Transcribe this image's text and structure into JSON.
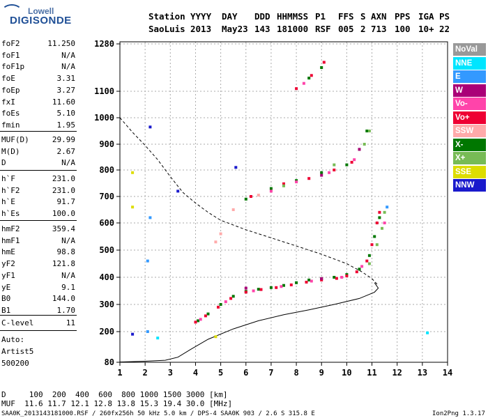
{
  "logo": {
    "brand_top": "Lowell",
    "brand_main": "DIGISONDE"
  },
  "header": {
    "row1": [
      "Station",
      "YYYY",
      "DAY",
      "DDD",
      "HHMMSS",
      "P1",
      "FFS",
      "S",
      "AXN",
      "PPS",
      "IGA",
      "PS"
    ],
    "row2": [
      "SaoLuis",
      "2013",
      "May23",
      "143",
      "181000",
      "RSF",
      "005",
      "2",
      "713",
      "100",
      "10+",
      "22"
    ]
  },
  "params_group1": [
    {
      "name": "foF2",
      "value": "11.250"
    },
    {
      "name": "foF1",
      "value": "N/A"
    },
    {
      "name": "foF1p",
      "value": "N/A"
    },
    {
      "name": "foE",
      "value": "3.31"
    },
    {
      "name": "foEp",
      "value": "3.27"
    },
    {
      "name": "fxI",
      "value": "11.60"
    },
    {
      "name": "foEs",
      "value": "5.10"
    },
    {
      "name": "fmin",
      "value": "1.95"
    }
  ],
  "params_group2": [
    {
      "name": "MUF(D)",
      "value": "29.99"
    },
    {
      "name": "M(D)",
      "value": "2.67"
    },
    {
      "name": "D",
      "value": "N/A"
    }
  ],
  "params_group3": [
    {
      "name": "h`F",
      "value": "231.0"
    },
    {
      "name": "h`F2",
      "value": "231.0"
    },
    {
      "name": "h`E",
      "value": "91.7"
    },
    {
      "name": "h`Es",
      "value": "100.0"
    }
  ],
  "params_group4": [
    {
      "name": "hmF2",
      "value": "359.4"
    },
    {
      "name": "hmF1",
      "value": "N/A"
    },
    {
      "name": "hmE",
      "value": "98.8"
    },
    {
      "name": "yF2",
      "value": "121.8"
    },
    {
      "name": "yF1",
      "value": "N/A"
    },
    {
      "name": "yE",
      "value": "9.1"
    },
    {
      "name": "B0",
      "value": "144.0"
    },
    {
      "name": "B1",
      "value": "1.70"
    }
  ],
  "params_group5": [
    {
      "name": "C-level",
      "value": "11"
    }
  ],
  "notes": {
    "line1": "Auto:",
    "line2": "Artist5",
    "line3": "500200"
  },
  "legend": [
    {
      "label": "NoVal",
      "bg": "#999999",
      "fg": "#ffffff"
    },
    {
      "label": "NNE",
      "bg": "#00e5ff",
      "fg": "#ffffff"
    },
    {
      "label": "E",
      "bg": "#3399ff",
      "fg": "#ffffff"
    },
    {
      "label": "W",
      "bg": "#aa0077",
      "fg": "#ffffff"
    },
    {
      "label": "Vo-",
      "bg": "#ff44aa",
      "fg": "#ffffff"
    },
    {
      "label": "Vo+",
      "bg": "#ee0033",
      "fg": "#ffffff"
    },
    {
      "label": "SSW",
      "bg": "#ffaaaa",
      "fg": "#ffffff"
    },
    {
      "label": "X-",
      "bg": "#007700",
      "fg": "#ffffff"
    },
    {
      "label": "X+",
      "bg": "#77bb55",
      "fg": "#ffffff"
    },
    {
      "label": "SSE",
      "bg": "#dddd00",
      "fg": "#ffffff"
    },
    {
      "label": "NNW",
      "bg": "#1a1acc",
      "fg": "#ffffff"
    }
  ],
  "footer": {
    "d_row": "D     100  200  400  600  800 1000 1500 3000 [km]",
    "muf_row": "MUF  11.6 11.7 12.1 12.8 13.8 15.3 19.4 30.0 [MHz]",
    "file_line": "SAA0K_2013143181000.RSF / 260fx256h 50 kHz 5.0 km / DPS-4 SAA0K 903 / 2.6 S 315.8 E",
    "version": "Ion2Png 1.3.17"
  },
  "chart_data": {
    "type": "scatter",
    "x_ticks": [
      1,
      2,
      3,
      4,
      5,
      6,
      7,
      8,
      9,
      10,
      11,
      12,
      13,
      14
    ],
    "y_ticks": [
      80,
      200,
      300,
      400,
      500,
      600,
      700,
      800,
      900,
      1000,
      1100,
      1280
    ],
    "xlim": [
      1,
      14
    ],
    "ylim": [
      80,
      1280
    ],
    "grid": true,
    "series": [
      {
        "name": "X-",
        "color": "#007700",
        "points": [
          [
            4.1,
            240
          ],
          [
            4.5,
            265
          ],
          [
            5,
            300
          ],
          [
            5.5,
            330
          ],
          [
            6,
            348
          ],
          [
            6.5,
            356
          ],
          [
            7,
            362
          ],
          [
            7.5,
            370
          ],
          [
            8,
            380
          ],
          [
            8.5,
            390
          ],
          [
            9,
            395
          ],
          [
            9.5,
            400
          ],
          [
            10,
            410
          ],
          [
            10.5,
            430
          ],
          [
            10.9,
            480
          ],
          [
            11.1,
            550
          ],
          [
            11.3,
            620
          ],
          [
            6,
            690
          ],
          [
            7,
            730
          ],
          [
            8,
            760
          ],
          [
            9,
            790
          ],
          [
            10,
            820
          ],
          [
            10.5,
            880
          ],
          [
            10.8,
            950
          ],
          [
            8.5,
            1150
          ],
          [
            9,
            1190
          ]
        ]
      },
      {
        "name": "Vo+",
        "color": "#ee0033",
        "points": [
          [
            4,
            235
          ],
          [
            4.4,
            258
          ],
          [
            4.9,
            290
          ],
          [
            5.4,
            322
          ],
          [
            6,
            345
          ],
          [
            6.6,
            355
          ],
          [
            7.2,
            362
          ],
          [
            7.8,
            372
          ],
          [
            8.4,
            382
          ],
          [
            9,
            390
          ],
          [
            9.6,
            396
          ],
          [
            10,
            405
          ],
          [
            10.4,
            420
          ],
          [
            10.8,
            460
          ],
          [
            11,
            520
          ],
          [
            11.2,
            600
          ],
          [
            11.3,
            640
          ],
          [
            6.2,
            700
          ],
          [
            7.5,
            748
          ],
          [
            8.5,
            768
          ],
          [
            9.5,
            800
          ],
          [
            10.2,
            830
          ],
          [
            8,
            1110
          ],
          [
            8.6,
            1160
          ],
          [
            9.1,
            1210
          ]
        ]
      },
      {
        "name": "Vo-",
        "color": "#ff44aa",
        "points": [
          [
            4.2,
            245
          ],
          [
            5.2,
            310
          ],
          [
            6.3,
            350
          ],
          [
            7.4,
            366
          ],
          [
            8.6,
            386
          ],
          [
            9.8,
            400
          ],
          [
            10.6,
            440
          ],
          [
            11.5,
            600
          ],
          [
            7,
            720
          ],
          [
            8,
            755
          ],
          [
            9.3,
            790
          ],
          [
            10.3,
            840
          ],
          [
            8.3,
            1130
          ]
        ]
      },
      {
        "name": "X+",
        "color": "#77bb55",
        "points": [
          [
            10.9,
            450
          ],
          [
            11.2,
            520
          ],
          [
            11.4,
            580
          ],
          [
            11.5,
            640
          ],
          [
            10.7,
            900
          ],
          [
            10.9,
            950
          ],
          [
            7.5,
            740
          ],
          [
            9.5,
            820
          ]
        ]
      },
      {
        "name": "W",
        "color": "#aa0077",
        "points": [
          [
            6,
            360
          ],
          [
            9,
            395
          ],
          [
            10.5,
            880
          ],
          [
            9,
            780
          ]
        ]
      },
      {
        "name": "SSW",
        "color": "#ffaaaa",
        "points": [
          [
            4.8,
            530
          ],
          [
            5,
            560
          ],
          [
            5.5,
            650
          ],
          [
            6.5,
            705
          ]
        ]
      },
      {
        "name": "E",
        "color": "#3399ff",
        "points": [
          [
            2.2,
            620
          ],
          [
            2.1,
            460
          ],
          [
            11.6,
            660
          ],
          [
            2.1,
            200
          ]
        ]
      },
      {
        "name": "NNW",
        "color": "#1a1acc",
        "points": [
          [
            2.2,
            965
          ],
          [
            3.3,
            720
          ],
          [
            5.6,
            810
          ],
          [
            1.5,
            190
          ]
        ]
      },
      {
        "name": "SSE",
        "color": "#dddd00",
        "points": [
          [
            1.5,
            790
          ],
          [
            1.5,
            660
          ],
          [
            4.8,
            180
          ]
        ]
      },
      {
        "name": "NNE",
        "color": "#00e5ff",
        "points": [
          [
            2.5,
            175
          ],
          [
            13.2,
            195
          ]
        ]
      }
    ],
    "lines": [
      {
        "name": "vertical-profile",
        "style": "solid",
        "points": [
          [
            1,
            81
          ],
          [
            2,
            84
          ],
          [
            2.8,
            88
          ],
          [
            3.3,
            100
          ],
          [
            3.8,
            130
          ],
          [
            4.5,
            170
          ],
          [
            5.5,
            210
          ],
          [
            6.5,
            240
          ],
          [
            7.5,
            262
          ],
          [
            8.5,
            280
          ],
          [
            9.5,
            300
          ],
          [
            10.5,
            322
          ],
          [
            11.1,
            345
          ],
          [
            11.25,
            360
          ],
          [
            11.1,
            380
          ]
        ]
      },
      {
        "name": "model-trace",
        "style": "dashed",
        "points": [
          [
            1,
            1000
          ],
          [
            1.5,
            945
          ],
          [
            2,
            895
          ],
          [
            2.5,
            840
          ],
          [
            3,
            775
          ],
          [
            3.5,
            715
          ],
          [
            4,
            675
          ],
          [
            4.5,
            640
          ],
          [
            5,
            610
          ],
          [
            6,
            575
          ],
          [
            7,
            545
          ],
          [
            8,
            515
          ],
          [
            9,
            485
          ],
          [
            10,
            450
          ],
          [
            10.6,
            420
          ],
          [
            11,
            395
          ],
          [
            11.25,
            370
          ]
        ]
      }
    ]
  }
}
